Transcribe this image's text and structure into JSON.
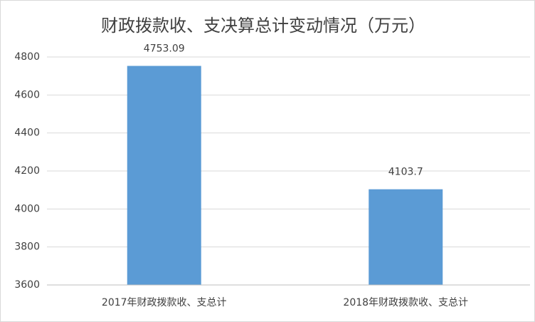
{
  "chart_data": {
    "type": "bar",
    "title": "财政拨款收、支决算总计变动情况（万元）",
    "categories": [
      "2017年财政拨款收、支总计",
      "2018年财政拨款收、支总计"
    ],
    "values": [
      4753.09,
      4103.7
    ],
    "color": "#5b9bd5",
    "ylim": [
      3600,
      4800
    ],
    "yticks": [
      3600,
      3800,
      4000,
      4200,
      4400,
      4600,
      4800
    ],
    "grid": true
  }
}
